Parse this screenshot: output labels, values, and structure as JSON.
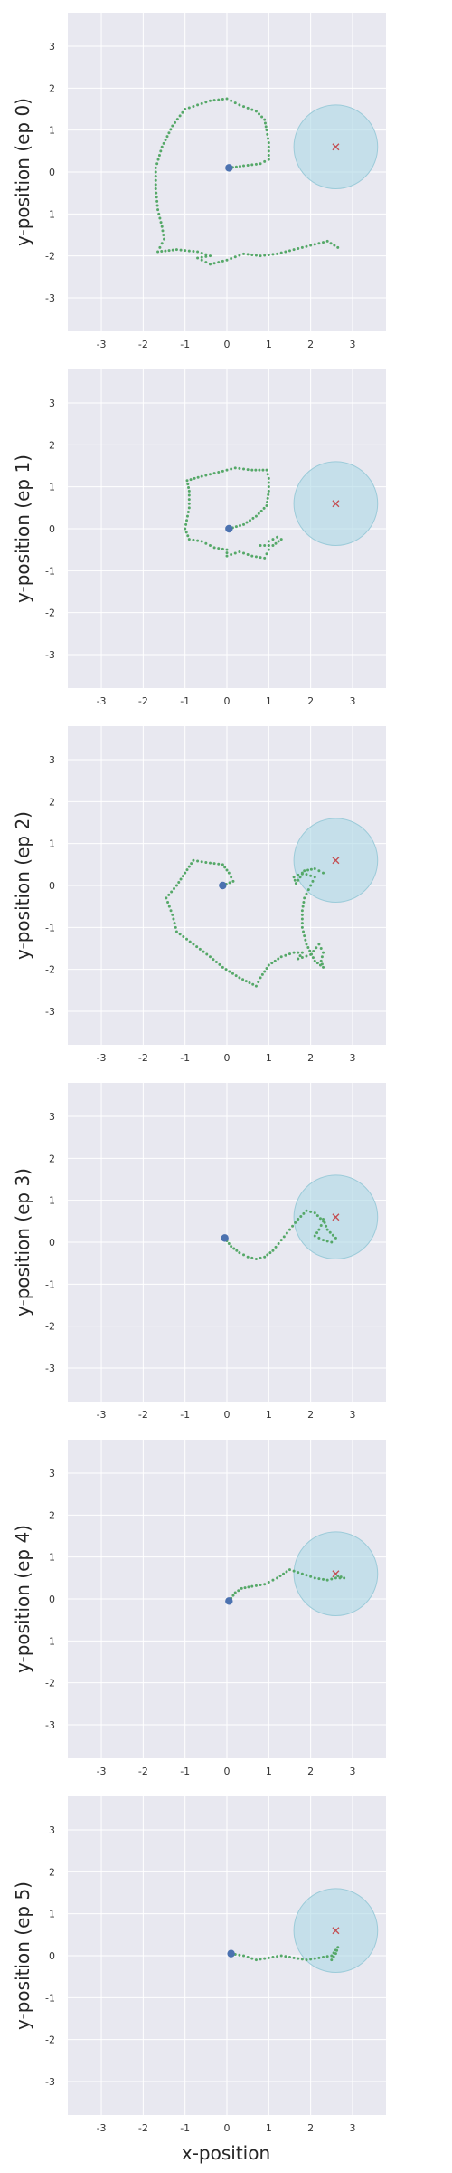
{
  "figure": {
    "xlabel": "x-position",
    "colors": {
      "background": "#e8e8f0",
      "grid": "#ffffff",
      "trajectory": "#55a868",
      "start": "#4c72b0",
      "goal_marker": "#c44e52",
      "goal_region": "#add8e6"
    }
  },
  "chart_data": [
    {
      "type": "scatter",
      "ylabel": "y-position (ep 0)",
      "xlabel": "",
      "xlim": [
        -3.8,
        3.8
      ],
      "ylim": [
        -3.8,
        3.8
      ],
      "xticks": [
        "-3",
        "-2",
        "-1",
        "0",
        "1",
        "2",
        "3"
      ],
      "yticks": [
        "-3",
        "-2",
        "-1",
        "0",
        "1",
        "2",
        "3"
      ],
      "grid": true,
      "goal": {
        "x": 2.6,
        "y": 0.6,
        "radius": 1.0
      },
      "start": {
        "x": 0.05,
        "y": 0.1
      },
      "trajectory": [
        [
          0.05,
          0.1
        ],
        [
          0.4,
          0.15
        ],
        [
          0.8,
          0.2
        ],
        [
          1.0,
          0.3
        ],
        [
          1.0,
          0.7
        ],
        [
          0.95,
          1.0
        ],
        [
          0.9,
          1.25
        ],
        [
          0.7,
          1.45
        ],
        [
          0.3,
          1.6
        ],
        [
          0.0,
          1.75
        ],
        [
          -0.4,
          1.7
        ],
        [
          -0.7,
          1.6
        ],
        [
          -1.0,
          1.5
        ],
        [
          -1.3,
          1.1
        ],
        [
          -1.55,
          0.6
        ],
        [
          -1.7,
          0.1
        ],
        [
          -1.7,
          -0.4
        ],
        [
          -1.65,
          -0.9
        ],
        [
          -1.55,
          -1.3
        ],
        [
          -1.5,
          -1.6
        ],
        [
          -1.65,
          -1.9
        ],
        [
          -1.2,
          -1.85
        ],
        [
          -0.7,
          -1.9
        ],
        [
          -0.4,
          -2.0
        ],
        [
          -0.7,
          -2.05
        ],
        [
          -0.4,
          -2.2
        ],
        [
          0.0,
          -2.1
        ],
        [
          0.4,
          -1.95
        ],
        [
          0.8,
          -2.0
        ],
        [
          1.2,
          -1.95
        ],
        [
          1.6,
          -1.85
        ],
        [
          2.0,
          -1.75
        ],
        [
          2.4,
          -1.65
        ],
        [
          2.65,
          -1.8
        ]
      ]
    },
    {
      "type": "scatter",
      "ylabel": "y-position (ep 1)",
      "xlabel": "",
      "xlim": [
        -3.8,
        3.8
      ],
      "ylim": [
        -3.8,
        3.8
      ],
      "xticks": [
        "-3",
        "-2",
        "-1",
        "0",
        "1",
        "2",
        "3"
      ],
      "yticks": [
        "-3",
        "-2",
        "-1",
        "0",
        "1",
        "2",
        "3"
      ],
      "grid": true,
      "goal": {
        "x": 2.6,
        "y": 0.6,
        "radius": 1.0
      },
      "start": {
        "x": 0.05,
        "y": 0.0
      },
      "trajectory": [
        [
          0.05,
          0.0
        ],
        [
          0.4,
          0.1
        ],
        [
          0.7,
          0.3
        ],
        [
          0.95,
          0.55
        ],
        [
          1.0,
          0.9
        ],
        [
          1.0,
          1.2
        ],
        [
          0.95,
          1.4
        ],
        [
          0.6,
          1.4
        ],
        [
          0.2,
          1.45
        ],
        [
          -0.2,
          1.35
        ],
        [
          -0.6,
          1.25
        ],
        [
          -0.95,
          1.15
        ],
        [
          -0.9,
          0.9
        ],
        [
          -0.9,
          0.5
        ],
        [
          -1.0,
          0.0
        ],
        [
          -0.9,
          -0.25
        ],
        [
          -0.6,
          -0.3
        ],
        [
          -0.3,
          -0.45
        ],
        [
          0.0,
          -0.5
        ],
        [
          0.0,
          -0.65
        ],
        [
          0.3,
          -0.55
        ],
        [
          0.6,
          -0.65
        ],
        [
          0.9,
          -0.7
        ],
        [
          1.0,
          -0.5
        ],
        [
          1.0,
          -0.3
        ],
        [
          1.2,
          -0.2
        ],
        [
          1.3,
          -0.25
        ],
        [
          1.1,
          -0.4
        ],
        [
          0.8,
          -0.4
        ]
      ]
    },
    {
      "type": "scatter",
      "ylabel": "y-position (ep 2)",
      "xlabel": "",
      "xlim": [
        -3.8,
        3.8
      ],
      "ylim": [
        -3.8,
        3.8
      ],
      "xticks": [
        "-3",
        "-2",
        "-1",
        "0",
        "1",
        "2",
        "3"
      ],
      "yticks": [
        "-3",
        "-2",
        "-1",
        "0",
        "1",
        "2",
        "3"
      ],
      "grid": true,
      "goal": {
        "x": 2.6,
        "y": 0.6,
        "radius": 1.0
      },
      "start": {
        "x": -0.1,
        "y": 0.0
      },
      "trajectory": [
        [
          -0.1,
          0.0
        ],
        [
          0.15,
          0.1
        ],
        [
          0.05,
          0.3
        ],
        [
          -0.1,
          0.5
        ],
        [
          -0.5,
          0.55
        ],
        [
          -0.8,
          0.6
        ],
        [
          -1.0,
          0.3
        ],
        [
          -1.2,
          0.0
        ],
        [
          -1.45,
          -0.3
        ],
        [
          -1.3,
          -0.7
        ],
        [
          -1.2,
          -1.1
        ],
        [
          -0.8,
          -1.4
        ],
        [
          -0.4,
          -1.7
        ],
        [
          -0.1,
          -1.95
        ],
        [
          0.3,
          -2.2
        ],
        [
          0.7,
          -2.4
        ],
        [
          0.8,
          -2.2
        ],
        [
          1.0,
          -1.9
        ],
        [
          1.3,
          -1.7
        ],
        [
          1.6,
          -1.6
        ],
        [
          1.8,
          -1.6
        ],
        [
          1.7,
          -1.75
        ],
        [
          2.0,
          -1.65
        ],
        [
          2.2,
          -1.4
        ],
        [
          2.3,
          -1.6
        ],
        [
          2.25,
          -1.8
        ],
        [
          2.3,
          -1.95
        ],
        [
          2.1,
          -1.8
        ],
        [
          1.9,
          -1.4
        ],
        [
          1.8,
          -1.0
        ],
        [
          1.8,
          -0.6
        ],
        [
          1.85,
          -0.3
        ],
        [
          2.0,
          0.0
        ],
        [
          2.1,
          0.2
        ],
        [
          1.8,
          0.3
        ],
        [
          1.6,
          0.2
        ],
        [
          1.65,
          0.05
        ],
        [
          1.85,
          0.35
        ],
        [
          2.1,
          0.4
        ],
        [
          2.3,
          0.3
        ]
      ]
    },
    {
      "type": "scatter",
      "ylabel": "y-position (ep 3)",
      "xlabel": "",
      "xlim": [
        -3.8,
        3.8
      ],
      "ylim": [
        -3.8,
        3.8
      ],
      "xticks": [
        "-3",
        "-2",
        "-1",
        "0",
        "1",
        "2",
        "3"
      ],
      "yticks": [
        "-3",
        "-2",
        "-1",
        "0",
        "1",
        "2",
        "3"
      ],
      "grid": true,
      "goal": {
        "x": 2.6,
        "y": 0.6,
        "radius": 1.0
      },
      "start": {
        "x": -0.05,
        "y": 0.1
      },
      "trajectory": [
        [
          -0.05,
          0.1
        ],
        [
          0.1,
          -0.1
        ],
        [
          0.3,
          -0.25
        ],
        [
          0.5,
          -0.35
        ],
        [
          0.7,
          -0.4
        ],
        [
          0.9,
          -0.35
        ],
        [
          1.1,
          -0.2
        ],
        [
          1.3,
          0.05
        ],
        [
          1.5,
          0.3
        ],
        [
          1.7,
          0.55
        ],
        [
          1.9,
          0.75
        ],
        [
          2.1,
          0.7
        ],
        [
          2.3,
          0.5
        ],
        [
          2.2,
          0.3
        ],
        [
          2.1,
          0.15
        ],
        [
          2.3,
          0.05
        ],
        [
          2.5,
          0.0
        ],
        [
          2.6,
          0.1
        ],
        [
          2.4,
          0.3
        ],
        [
          2.3,
          0.55
        ]
      ]
    },
    {
      "type": "scatter",
      "ylabel": "y-position (ep 4)",
      "xlabel": "",
      "xlim": [
        -3.8,
        3.8
      ],
      "ylim": [
        -3.8,
        3.8
      ],
      "xticks": [
        "-3",
        "-2",
        "-1",
        "0",
        "1",
        "2",
        "3"
      ],
      "yticks": [
        "-3",
        "-2",
        "-1",
        "0",
        "1",
        "2",
        "3"
      ],
      "grid": true,
      "goal": {
        "x": 2.6,
        "y": 0.6,
        "radius": 1.0
      },
      "start": {
        "x": 0.05,
        "y": -0.05
      },
      "trajectory": [
        [
          0.05,
          -0.05
        ],
        [
          0.2,
          0.15
        ],
        [
          0.35,
          0.25
        ],
        [
          0.6,
          0.3
        ],
        [
          0.9,
          0.35
        ],
        [
          1.2,
          0.5
        ],
        [
          1.5,
          0.7
        ],
        [
          1.8,
          0.6
        ],
        [
          2.1,
          0.5
        ],
        [
          2.4,
          0.45
        ],
        [
          2.6,
          0.5
        ],
        [
          2.8,
          0.5
        ],
        [
          2.65,
          0.55
        ]
      ]
    },
    {
      "type": "scatter",
      "ylabel": "y-position (ep 5)",
      "xlabel": "x-position",
      "xlim": [
        -3.8,
        3.8
      ],
      "ylim": [
        -3.8,
        3.8
      ],
      "xticks": [
        "-3",
        "-2",
        "-1",
        "0",
        "1",
        "2",
        "3"
      ],
      "yticks": [
        "-3",
        "-2",
        "-1",
        "0",
        "1",
        "2",
        "3"
      ],
      "grid": true,
      "goal": {
        "x": 2.6,
        "y": 0.6,
        "radius": 1.0
      },
      "start": {
        "x": 0.1,
        "y": 0.05
      },
      "trajectory": [
        [
          0.1,
          0.05
        ],
        [
          0.4,
          0.0
        ],
        [
          0.7,
          -0.1
        ],
        [
          1.0,
          -0.05
        ],
        [
          1.3,
          0.0
        ],
        [
          1.6,
          -0.05
        ],
        [
          1.9,
          -0.1
        ],
        [
          2.2,
          -0.05
        ],
        [
          2.5,
          0.0
        ],
        [
          2.65,
          0.2
        ],
        [
          2.6,
          0.05
        ],
        [
          2.5,
          -0.1
        ]
      ]
    }
  ]
}
